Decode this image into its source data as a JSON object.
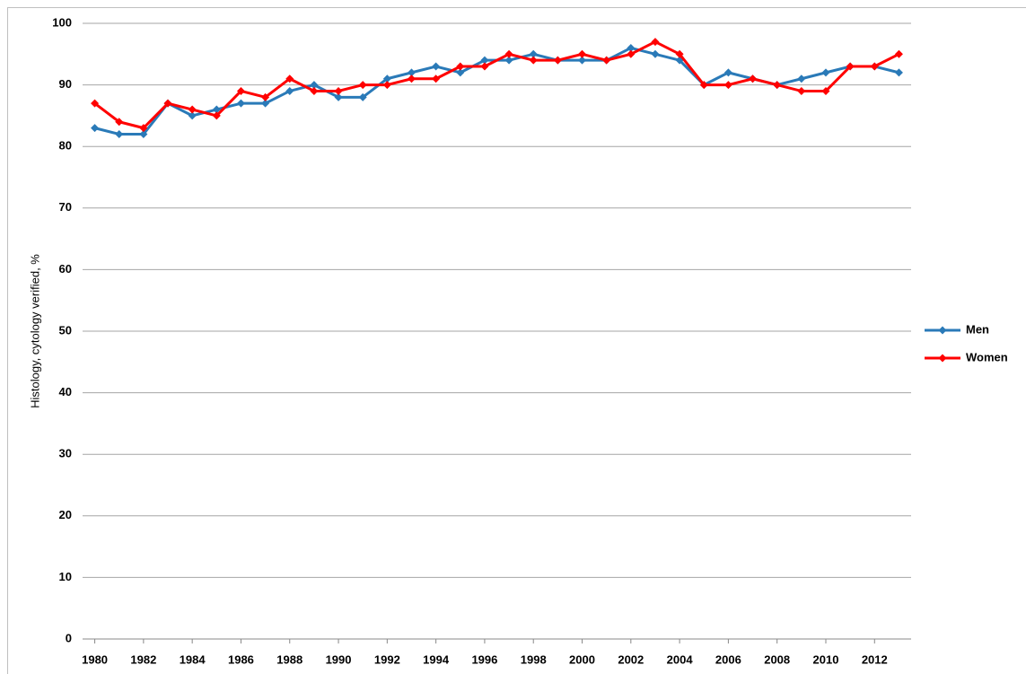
{
  "chart_data": {
    "type": "line",
    "y_label": "Histology, cytology verified, %",
    "x": [
      1980,
      1981,
      1982,
      1983,
      1984,
      1985,
      1986,
      1987,
      1988,
      1989,
      1990,
      1991,
      1992,
      1993,
      1994,
      1995,
      1996,
      1997,
      1998,
      1999,
      2000,
      2001,
      2002,
      2003,
      2004,
      2005,
      2006,
      2007,
      2008,
      2009,
      2010,
      2011,
      2012,
      2013
    ],
    "series": [
      {
        "name": "Men",
        "color": "#2a7ab8",
        "values": [
          83,
          82,
          82,
          87,
          85,
          86,
          87,
          87,
          89,
          90,
          88,
          88,
          91,
          92,
          93,
          92,
          94,
          94,
          95,
          94,
          94,
          94,
          96,
          95,
          94,
          90,
          92,
          91,
          90,
          91,
          92,
          93,
          93,
          92
        ]
      },
      {
        "name": "Women",
        "color": "#ff0000",
        "values": [
          87,
          84,
          83,
          87,
          86,
          85,
          89,
          88,
          91,
          89,
          89,
          90,
          90,
          91,
          91,
          93,
          93,
          95,
          94,
          94,
          95,
          94,
          95,
          97,
          95,
          90,
          90,
          91,
          90,
          89,
          89,
          93,
          93,
          95
        ]
      }
    ],
    "xlim": [
      1979.5,
      2013.5
    ],
    "xticks": [
      1980,
      1982,
      1984,
      1986,
      1988,
      1990,
      1992,
      1994,
      1996,
      1998,
      2000,
      2002,
      2004,
      2006,
      2008,
      2010,
      2012
    ],
    "ylim": [
      0,
      100
    ],
    "yticks": [
      0,
      10,
      20,
      30,
      40,
      50,
      60,
      70,
      80,
      90,
      100
    ],
    "grid": true,
    "legend": "right"
  }
}
